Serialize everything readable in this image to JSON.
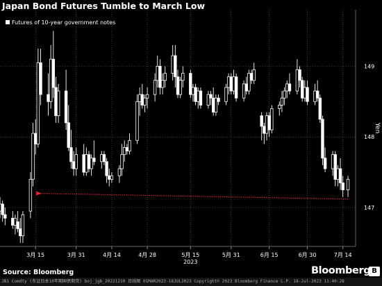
{
  "header": {
    "title": "Japan Bond Futures Tumble to March Low"
  },
  "footer": {
    "source": "Source: Bloomberg",
    "brand": "Bloomberg",
    "badge": "B",
    "terminal_line": "JB1 Comdty (东证日本10年期国债期货) boj_jgb_20221210  日线图 01MAR2023-18JUL2023 Copyright© 2023 Bloomberg Finance L.P. 18-Jul-2023 11:40:28"
  },
  "colors": {
    "background": "#000000",
    "candle": "#ffffff",
    "grid": "#555555",
    "arrow": "#e8212f"
  },
  "chart_data": {
    "type": "candlestick",
    "title": "Japan Bond Futures Tumble to March Low",
    "legend": [
      "Futures of 10-year government notes"
    ],
    "legend_position": "top-left",
    "ylabel": "Yen",
    "ylim": [
      146.45,
      149.8
    ],
    "yticks": [
      147,
      148,
      149
    ],
    "xticks": [
      {
        "label": "3月 15",
        "day": 14
      },
      {
        "label": "3月 31",
        "day": 30
      },
      {
        "label": "4月 14",
        "day": 44
      },
      {
        "label": "4月 28",
        "day": 58
      },
      {
        "label": "5月 15",
        "day": 75
      },
      {
        "label": "5月 31",
        "day": 91
      },
      {
        "label": "6月 15",
        "day": 106
      },
      {
        "label": "6月 30",
        "day": 121
      },
      {
        "label": "7月 14",
        "day": 135
      }
    ],
    "year_label": {
      "text": "2023",
      "day": 75
    },
    "grid": true,
    "annotation": {
      "type": "arrow",
      "from_day": 137,
      "from_value": 147.12,
      "to_day": 14,
      "to_value": 147.2
    },
    "series": [
      {
        "name": "Futures of 10-year government notes",
        "ohlc": [
          {
            "d": 0,
            "o": 146.95,
            "h": 147.15,
            "l": 146.85,
            "c": 147.05
          },
          {
            "d": 1,
            "o": 147.05,
            "h": 147.1,
            "l": 146.8,
            "c": 146.9
          },
          {
            "d": 2,
            "o": 146.9,
            "h": 147.0,
            "l": 146.75,
            "c": 146.85
          },
          {
            "d": 5,
            "o": 146.85,
            "h": 146.95,
            "l": 146.7,
            "c": 146.75
          },
          {
            "d": 6,
            "o": 146.75,
            "h": 146.9,
            "l": 146.62,
            "c": 146.85
          },
          {
            "d": 7,
            "o": 146.8,
            "h": 146.95,
            "l": 146.65,
            "c": 146.7
          },
          {
            "d": 8,
            "o": 146.7,
            "h": 146.85,
            "l": 146.5,
            "c": 146.6
          },
          {
            "d": 9,
            "o": 146.6,
            "h": 146.95,
            "l": 146.5,
            "c": 146.9
          },
          {
            "d": 12,
            "o": 146.95,
            "h": 147.5,
            "l": 146.85,
            "c": 147.4
          },
          {
            "d": 13,
            "o": 147.4,
            "h": 148.2,
            "l": 147.3,
            "c": 148.05
          },
          {
            "d": 14,
            "o": 148.05,
            "h": 148.25,
            "l": 147.75,
            "c": 147.9
          },
          {
            "d": 15,
            "o": 147.9,
            "h": 149.25,
            "l": 147.85,
            "c": 149.05
          },
          {
            "d": 16,
            "o": 149.05,
            "h": 149.25,
            "l": 148.45,
            "c": 148.6
          },
          {
            "d": 19,
            "o": 148.6,
            "h": 148.9,
            "l": 148.3,
            "c": 148.5
          },
          {
            "d": 20,
            "o": 148.5,
            "h": 149.3,
            "l": 148.4,
            "c": 149.1
          },
          {
            "d": 21,
            "o": 149.1,
            "h": 149.5,
            "l": 148.55,
            "c": 148.7
          },
          {
            "d": 22,
            "o": 148.7,
            "h": 148.85,
            "l": 148.2,
            "c": 148.3
          },
          {
            "d": 23,
            "o": 148.3,
            "h": 148.75,
            "l": 148.2,
            "c": 148.65
          },
          {
            "d": 26,
            "o": 148.65,
            "h": 148.95,
            "l": 148.1,
            "c": 148.2
          },
          {
            "d": 27,
            "o": 148.2,
            "h": 148.45,
            "l": 147.8,
            "c": 147.85
          },
          {
            "d": 28,
            "o": 147.85,
            "h": 148.1,
            "l": 147.55,
            "c": 147.65
          },
          {
            "d": 29,
            "o": 147.65,
            "h": 147.8,
            "l": 147.45,
            "c": 147.55
          },
          {
            "d": 30,
            "o": 147.55,
            "h": 147.85,
            "l": 147.45,
            "c": 147.75
          },
          {
            "d": 33,
            "o": 147.75,
            "h": 147.9,
            "l": 147.45,
            "c": 147.5
          },
          {
            "d": 34,
            "o": 147.5,
            "h": 147.85,
            "l": 147.45,
            "c": 147.75
          },
          {
            "d": 35,
            "o": 147.75,
            "h": 147.8,
            "l": 147.5,
            "c": 147.55
          },
          {
            "d": 36,
            "o": 147.55,
            "h": 147.75,
            "l": 147.45,
            "c": 147.7
          },
          {
            "d": 37,
            "o": 147.7,
            "h": 147.95,
            "l": 147.6,
            "c": 147.65
          },
          {
            "d": 40,
            "o": 147.65,
            "h": 147.8,
            "l": 147.55,
            "c": 147.75
          },
          {
            "d": 41,
            "o": 147.75,
            "h": 147.8,
            "l": 147.6,
            "c": 147.65
          },
          {
            "d": 42,
            "o": 147.65,
            "h": 147.7,
            "l": 147.35,
            "c": 147.45
          },
          {
            "d": 43,
            "o": 147.45,
            "h": 147.55,
            "l": 147.3,
            "c": 147.4
          },
          {
            "d": 44,
            "o": 147.4,
            "h": 147.5,
            "l": 147.35,
            "c": 147.45
          },
          {
            "d": 47,
            "o": 147.45,
            "h": 147.6,
            "l": 147.35,
            "c": 147.55
          },
          {
            "d": 48,
            "o": 147.55,
            "h": 147.9,
            "l": 147.45,
            "c": 147.75
          },
          {
            "d": 49,
            "o": 147.75,
            "h": 147.95,
            "l": 147.65,
            "c": 147.85
          },
          {
            "d": 50,
            "o": 147.85,
            "h": 147.9,
            "l": 147.75,
            "c": 147.8
          },
          {
            "d": 51,
            "o": 147.8,
            "h": 148.05,
            "l": 147.75,
            "c": 147.95
          },
          {
            "d": 54,
            "o": 147.95,
            "h": 148.6,
            "l": 147.9,
            "c": 148.5
          },
          {
            "d": 55,
            "o": 148.5,
            "h": 148.7,
            "l": 148.3,
            "c": 148.6
          },
          {
            "d": 56,
            "o": 148.6,
            "h": 148.75,
            "l": 148.4,
            "c": 148.45
          },
          {
            "d": 57,
            "o": 148.45,
            "h": 148.6,
            "l": 148.35,
            "c": 148.55
          },
          {
            "d": 58,
            "o": 148.55,
            "h": 148.7,
            "l": 148.4,
            "c": 148.6
          },
          {
            "d": 61,
            "o": 148.6,
            "h": 148.9,
            "l": 148.5,
            "c": 148.8
          },
          {
            "d": 62,
            "o": 148.8,
            "h": 149.15,
            "l": 148.7,
            "c": 149.0
          },
          {
            "d": 63,
            "o": 149.0,
            "h": 149.1,
            "l": 148.6,
            "c": 148.7
          },
          {
            "d": 64,
            "o": 148.7,
            "h": 148.9,
            "l": 148.6,
            "c": 148.8
          },
          {
            "d": 65,
            "o": 148.8,
            "h": 149.0,
            "l": 148.7,
            "c": 148.9
          },
          {
            "d": 68,
            "o": 148.9,
            "h": 149.3,
            "l": 148.8,
            "c": 149.15
          },
          {
            "d": 69,
            "o": 149.15,
            "h": 149.3,
            "l": 148.7,
            "c": 148.85
          },
          {
            "d": 70,
            "o": 148.85,
            "h": 148.95,
            "l": 148.55,
            "c": 148.6
          },
          {
            "d": 71,
            "o": 148.6,
            "h": 148.85,
            "l": 148.55,
            "c": 148.8
          },
          {
            "d": 72,
            "o": 148.8,
            "h": 149.0,
            "l": 148.7,
            "c": 148.9
          },
          {
            "d": 75,
            "o": 148.9,
            "h": 148.95,
            "l": 148.55,
            "c": 148.6
          },
          {
            "d": 76,
            "o": 148.6,
            "h": 148.75,
            "l": 148.5,
            "c": 148.7
          },
          {
            "d": 77,
            "o": 148.7,
            "h": 148.75,
            "l": 148.45,
            "c": 148.5
          },
          {
            "d": 78,
            "o": 148.5,
            "h": 148.7,
            "l": 148.4,
            "c": 148.65
          },
          {
            "d": 79,
            "o": 148.65,
            "h": 148.7,
            "l": 148.4,
            "c": 148.45
          },
          {
            "d": 82,
            "o": 148.45,
            "h": 148.65,
            "l": 148.4,
            "c": 148.6
          },
          {
            "d": 83,
            "o": 148.6,
            "h": 148.65,
            "l": 148.45,
            "c": 148.55
          },
          {
            "d": 84,
            "o": 148.55,
            "h": 148.7,
            "l": 148.3,
            "c": 148.35
          },
          {
            "d": 85,
            "o": 148.35,
            "h": 148.6,
            "l": 148.3,
            "c": 148.55
          },
          {
            "d": 86,
            "o": 148.55,
            "h": 148.6,
            "l": 148.45,
            "c": 148.5
          },
          {
            "d": 89,
            "o": 148.5,
            "h": 148.75,
            "l": 148.45,
            "c": 148.7
          },
          {
            "d": 90,
            "o": 148.7,
            "h": 148.9,
            "l": 148.6,
            "c": 148.85
          },
          {
            "d": 91,
            "o": 148.85,
            "h": 148.9,
            "l": 148.6,
            "c": 148.65
          },
          {
            "d": 92,
            "o": 148.65,
            "h": 148.95,
            "l": 148.6,
            "c": 148.85
          },
          {
            "d": 93,
            "o": 148.85,
            "h": 148.9,
            "l": 148.5,
            "c": 148.55
          },
          {
            "d": 96,
            "o": 148.55,
            "h": 148.8,
            "l": 148.5,
            "c": 148.75
          },
          {
            "d": 97,
            "o": 148.75,
            "h": 148.85,
            "l": 148.6,
            "c": 148.65
          },
          {
            "d": 98,
            "o": 148.65,
            "h": 148.95,
            "l": 148.6,
            "c": 148.9
          },
          {
            "d": 99,
            "o": 148.9,
            "h": 148.95,
            "l": 148.75,
            "c": 148.8
          },
          {
            "d": 100,
            "o": 148.8,
            "h": 149.05,
            "l": 148.75,
            "c": 148.95
          },
          {
            "d": 103,
            "o": 148.3,
            "h": 148.35,
            "l": 147.95,
            "c": 148.15
          },
          {
            "d": 104,
            "o": 148.15,
            "h": 148.2,
            "l": 147.9,
            "c": 148.05
          },
          {
            "d": 105,
            "o": 148.05,
            "h": 148.35,
            "l": 147.95,
            "c": 148.3
          },
          {
            "d": 106,
            "o": 148.3,
            "h": 148.35,
            "l": 148.0,
            "c": 148.1
          },
          {
            "d": 107,
            "o": 148.1,
            "h": 148.45,
            "l": 148.05,
            "c": 148.4
          },
          {
            "d": 110,
            "o": 148.4,
            "h": 148.5,
            "l": 148.3,
            "c": 148.45
          },
          {
            "d": 111,
            "o": 148.45,
            "h": 148.65,
            "l": 148.35,
            "c": 148.55
          },
          {
            "d": 112,
            "o": 148.55,
            "h": 148.7,
            "l": 148.45,
            "c": 148.65
          },
          {
            "d": 113,
            "o": 148.65,
            "h": 148.8,
            "l": 148.55,
            "c": 148.75
          },
          {
            "d": 114,
            "o": 148.75,
            "h": 148.9,
            "l": 148.6,
            "c": 148.65
          },
          {
            "d": 117,
            "o": 148.65,
            "h": 149.1,
            "l": 148.6,
            "c": 148.95
          },
          {
            "d": 118,
            "o": 148.95,
            "h": 149.0,
            "l": 148.7,
            "c": 148.8
          },
          {
            "d": 119,
            "o": 148.8,
            "h": 148.85,
            "l": 148.5,
            "c": 148.55
          },
          {
            "d": 120,
            "o": 148.55,
            "h": 148.8,
            "l": 148.5,
            "c": 148.7
          },
          {
            "d": 121,
            "o": 148.7,
            "h": 148.8,
            "l": 148.45,
            "c": 148.5
          },
          {
            "d": 124,
            "o": 148.5,
            "h": 148.75,
            "l": 148.45,
            "c": 148.65
          },
          {
            "d": 125,
            "o": 148.65,
            "h": 148.8,
            "l": 148.5,
            "c": 148.55
          },
          {
            "d": 126,
            "o": 148.55,
            "h": 148.6,
            "l": 148.2,
            "c": 148.25
          },
          {
            "d": 127,
            "o": 148.25,
            "h": 148.3,
            "l": 147.6,
            "c": 147.7
          },
          {
            "d": 128,
            "o": 147.7,
            "h": 147.85,
            "l": 147.5,
            "c": 147.55
          },
          {
            "d": 131,
            "o": 147.55,
            "h": 147.8,
            "l": 147.45,
            "c": 147.75
          },
          {
            "d": 132,
            "o": 147.75,
            "h": 147.8,
            "l": 147.3,
            "c": 147.4
          },
          {
            "d": 133,
            "o": 147.4,
            "h": 147.6,
            "l": 147.3,
            "c": 147.55
          },
          {
            "d": 134,
            "o": 147.55,
            "h": 147.7,
            "l": 147.25,
            "c": 147.35
          },
          {
            "d": 135,
            "o": 147.35,
            "h": 147.45,
            "l": 147.15,
            "c": 147.25
          },
          {
            "d": 137,
            "o": 147.25,
            "h": 147.45,
            "l": 147.15,
            "c": 147.4
          }
        ]
      }
    ]
  }
}
